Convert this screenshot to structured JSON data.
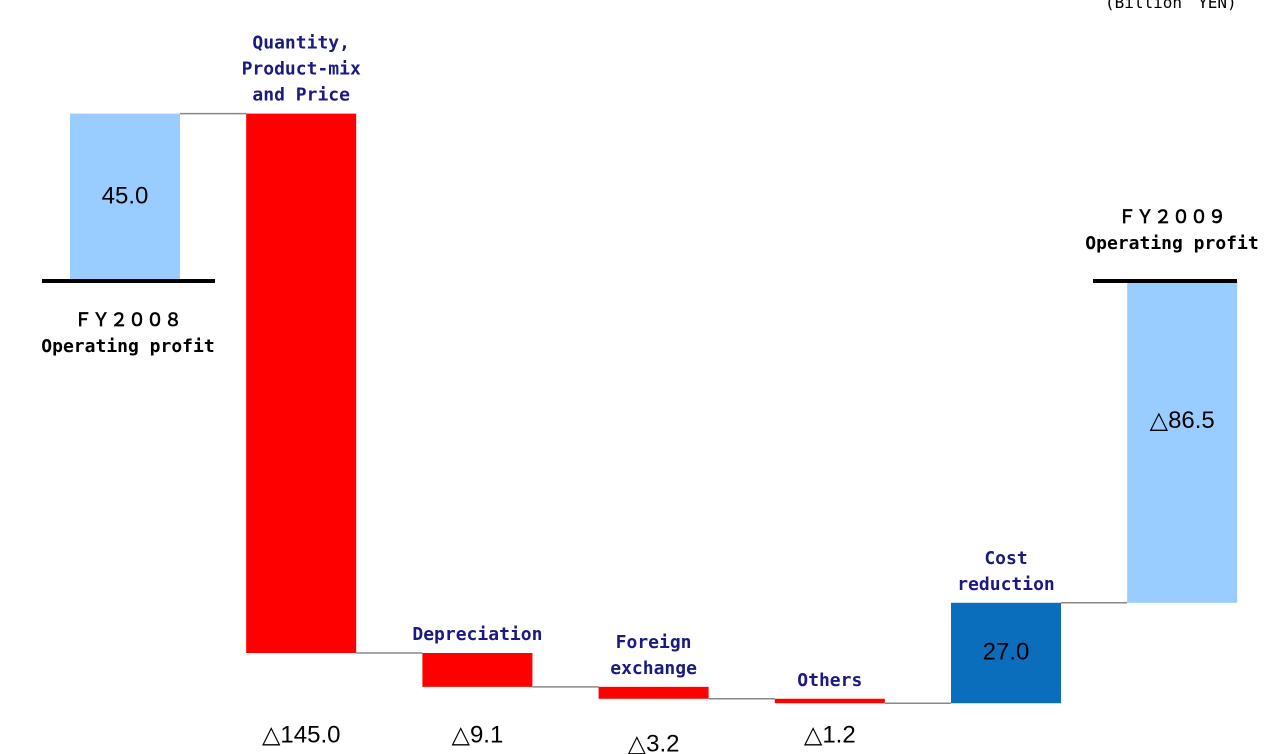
{
  "chart_data": {
    "type": "waterfall",
    "unit_label": "(Billion　YEN)",
    "categories": [
      [
        "ＦＹ２００８",
        "Operating profit"
      ],
      [
        "Quantity,",
        "Product-mix",
        "and Price"
      ],
      [
        "Depreciation"
      ],
      [
        "Foreign",
        "exchange"
      ],
      [
        "Others"
      ],
      [
        "Cost",
        "reduction"
      ],
      [
        "ＦＹ２００９",
        "Operating profit"
      ]
    ],
    "values": [
      45.0,
      -145.0,
      -9.1,
      -3.2,
      -1.2,
      27.0,
      -86.5
    ],
    "value_labels": [
      "45.0",
      "△145.0",
      "△9.1",
      "△3.2",
      "△1.2",
      "27.0",
      "△86.5"
    ],
    "totals": [
      true,
      false,
      false,
      false,
      false,
      false,
      true
    ],
    "colors": {
      "total": "#99ccff",
      "decrease": "#ff0000",
      "increase": "#0a6ebd"
    }
  }
}
